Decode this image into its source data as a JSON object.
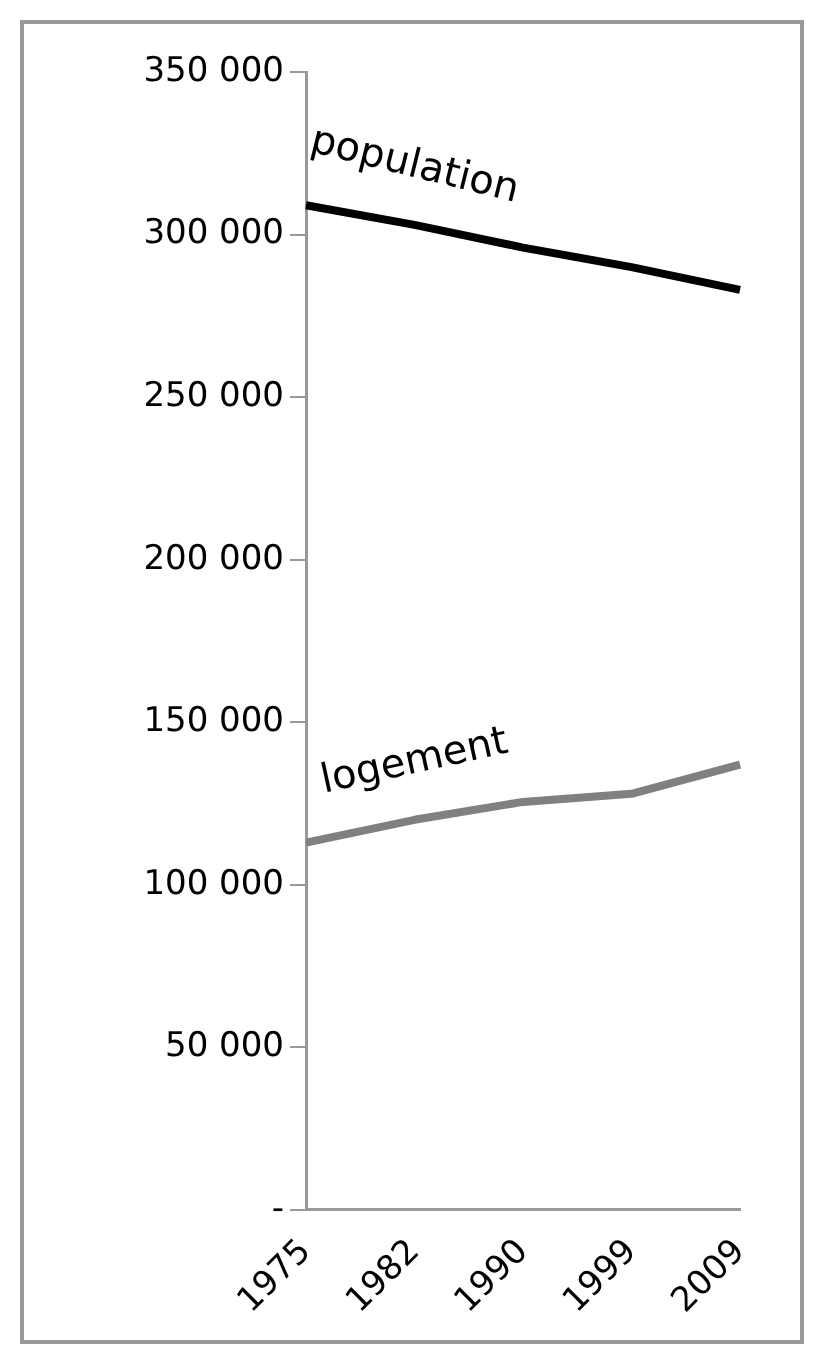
{
  "chart_data": {
    "type": "line",
    "categories": [
      "1975",
      "1982",
      "1990",
      "1999",
      "2009"
    ],
    "series": [
      {
        "name": "population",
        "color": "#000000",
        "values": [
          309000,
          303000,
          296000,
          290000,
          283000
        ]
      },
      {
        "name": "logement",
        "color": "#808080",
        "values": [
          113000,
          120000,
          125500,
          128000,
          137000
        ]
      }
    ],
    "ylim": [
      0,
      350000
    ],
    "yticks": [
      {
        "value": 0,
        "label": "-"
      },
      {
        "value": 50000,
        "label": "50 000"
      },
      {
        "value": 100000,
        "label": "100 000"
      },
      {
        "value": 150000,
        "label": "150 000"
      },
      {
        "value": 200000,
        "label": "200 000"
      },
      {
        "value": 250000,
        "label": "250 000"
      },
      {
        "value": 300000,
        "label": "300 000"
      },
      {
        "value": 350000,
        "label": "350 000"
      }
    ],
    "grid": false,
    "legend": false,
    "marker": "none",
    "line_style": "solid"
  }
}
